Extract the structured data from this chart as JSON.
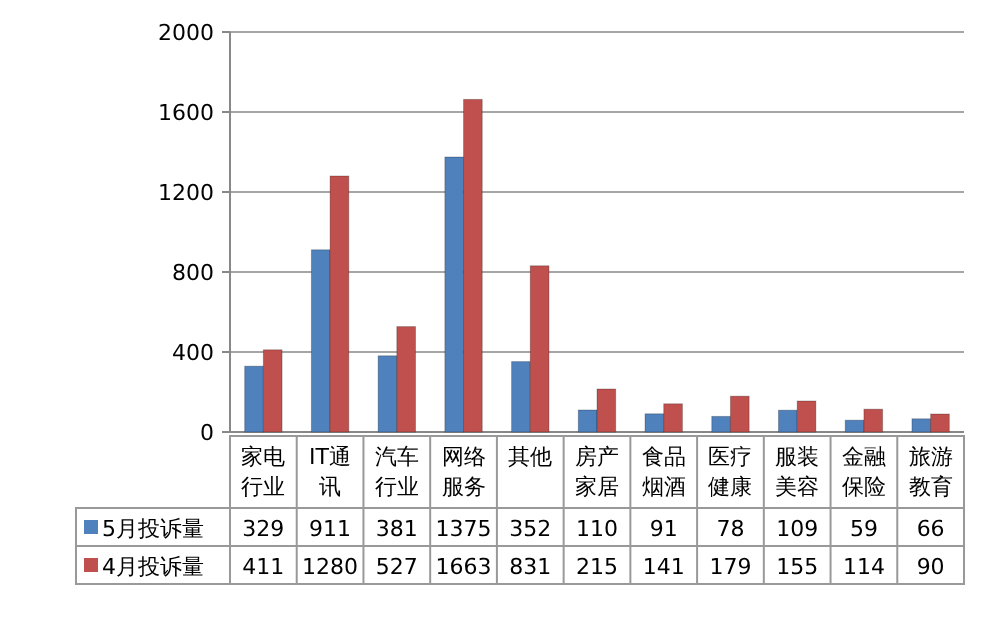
{
  "chart_data": {
    "type": "bar",
    "categories": [
      "家电行业",
      "IT通讯",
      "汽车行业",
      "网络服务",
      "其他",
      "房产家居",
      "食品烟酒",
      "医疗健康",
      "服装美容",
      "金融保险",
      "旅游教育"
    ],
    "series": [
      {
        "name": "5月投诉量",
        "color": "#4f81bd",
        "values": [
          329,
          911,
          381,
          1375,
          352,
          110,
          91,
          78,
          109,
          59,
          66
        ]
      },
      {
        "name": "4月投诉量",
        "color": "#c0504d",
        "values": [
          411,
          1280,
          527,
          1663,
          831,
          215,
          141,
          179,
          155,
          114,
          90
        ]
      }
    ],
    "ylim": [
      0,
      2000
    ],
    "yticks": [
      0,
      400,
      800,
      1200,
      1600,
      2000
    ],
    "grid": "y",
    "legend": "bottom",
    "data_labels": true
  }
}
